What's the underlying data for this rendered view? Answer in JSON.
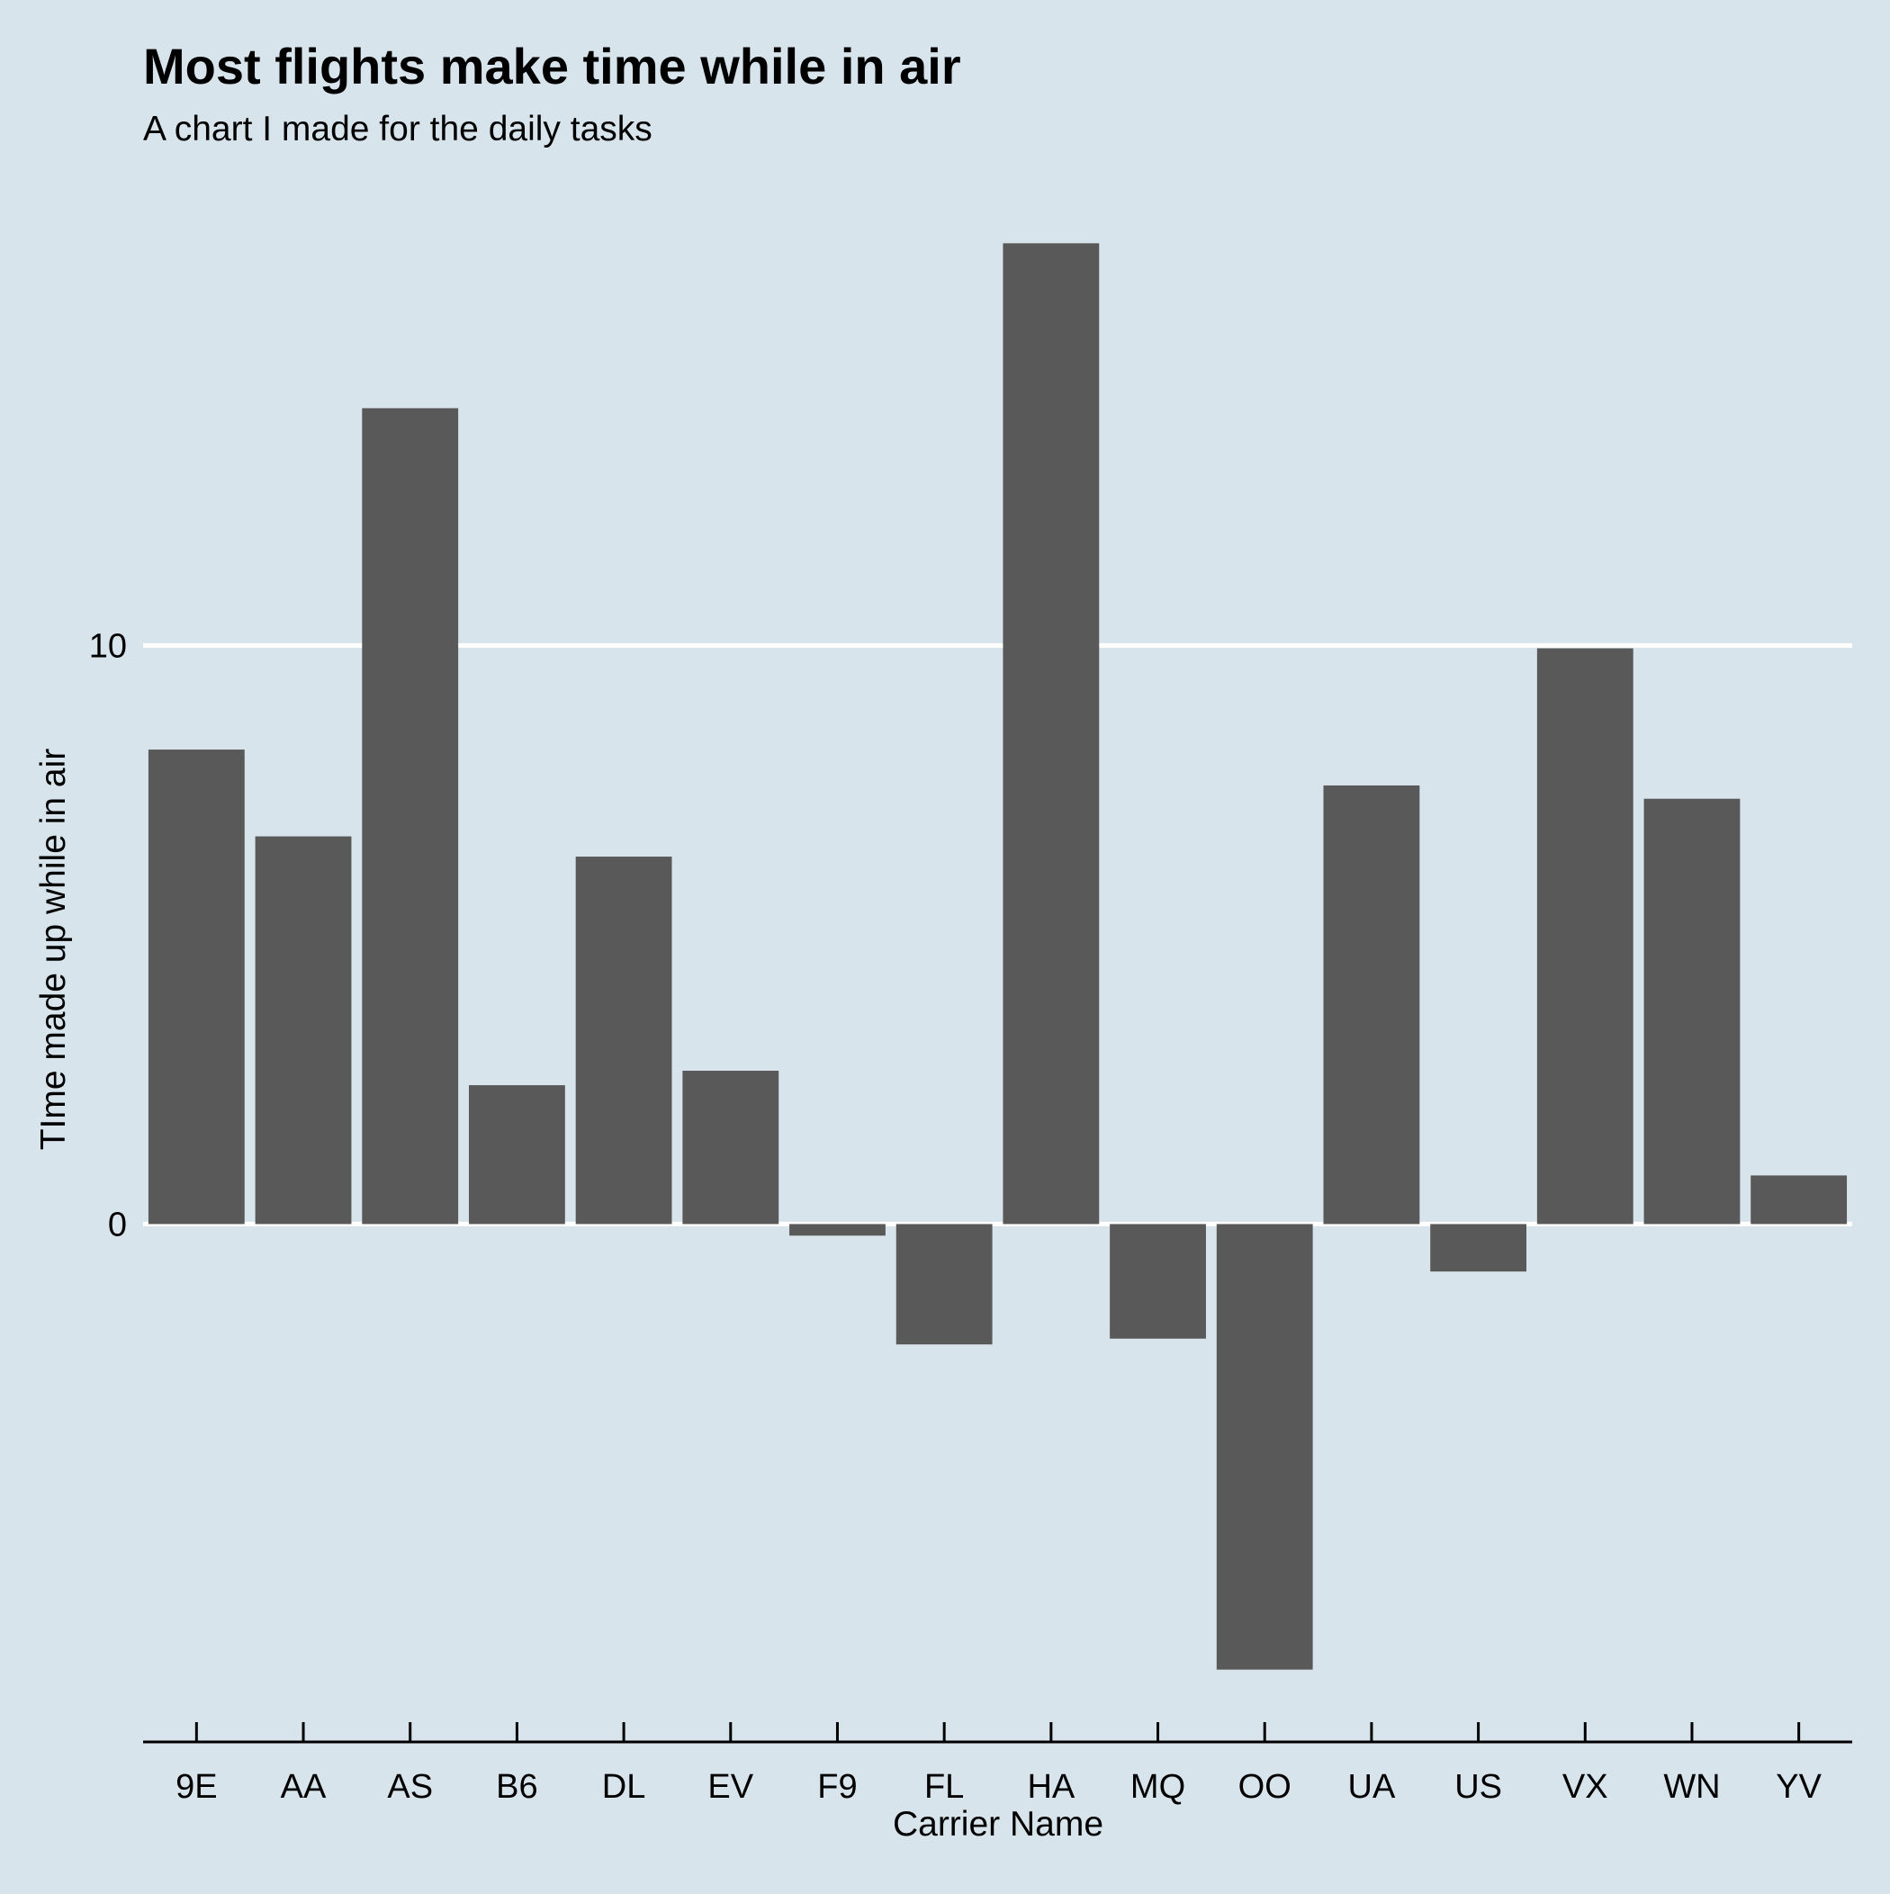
{
  "chart_data": {
    "type": "bar",
    "title": "Most flights make time while in air",
    "subtitle": "A chart I made for the daily tasks",
    "xlabel": "Carrier Name",
    "ylabel": "TIme made up while in air",
    "categories": [
      "9E",
      "AA",
      "AS",
      "B6",
      "DL",
      "EV",
      "F9",
      "FL",
      "HA",
      "MQ",
      "OO",
      "UA",
      "US",
      "VX",
      "WN",
      "YV"
    ],
    "values": [
      8.2,
      6.7,
      14.1,
      2.4,
      6.35,
      2.65,
      -0.2,
      -2.08,
      16.95,
      -1.98,
      -7.7,
      7.58,
      -0.82,
      9.95,
      7.35,
      0.84
    ],
    "yticks": [
      0,
      10
    ],
    "ylim": [
      -8.95,
      17.5
    ],
    "grid": "horizontal major lines at y ticks",
    "legend": "none",
    "colors": {
      "background": "#d7e4eb",
      "bar": "#595959",
      "grid": "#ffffff",
      "axis": "#000000"
    }
  }
}
